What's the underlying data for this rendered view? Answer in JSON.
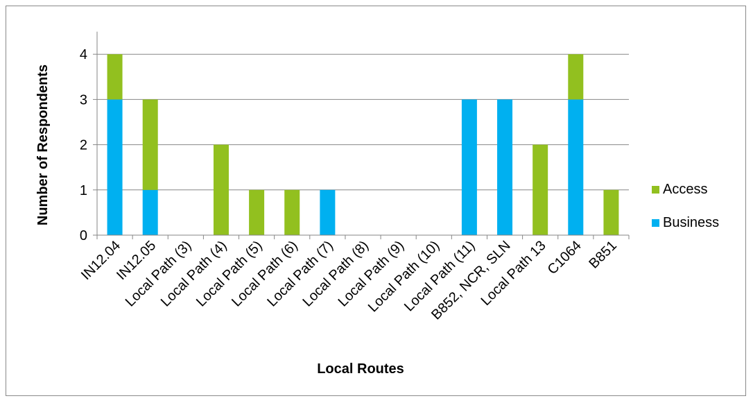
{
  "chart_data": {
    "type": "bar",
    "stacked": true,
    "title": "",
    "xlabel": "Local Routes",
    "ylabel": "Number of Respondents",
    "ylim": [
      0,
      4.5
    ],
    "yticks": [
      0,
      1,
      2,
      3,
      4
    ],
    "grid": true,
    "legend_position": "right",
    "categories": [
      "IN12.04",
      "IN12.05",
      "Local Path (3)",
      "Local Path (4)",
      "Local Path (5)",
      "Local Path (6)",
      "Local Path (7)",
      "Local Path (8)",
      "Local Path (9)",
      "Local Path (10)",
      "Local Path (11)",
      "B852, NCR, SLN",
      "Local Path 13",
      "C1064",
      "B851"
    ],
    "series": [
      {
        "name": "Business",
        "color": "#00b0f0",
        "values": [
          3,
          1,
          0,
          0,
          0,
          0,
          1,
          0,
          0,
          0,
          3,
          3,
          0,
          3,
          0
        ]
      },
      {
        "name": "Access",
        "color": "#92c01f",
        "values": [
          1,
          2,
          0,
          2,
          1,
          1,
          0,
          0,
          0,
          0,
          0,
          0,
          2,
          1,
          1
        ]
      }
    ],
    "legend_order": [
      "Access",
      "Business"
    ]
  }
}
